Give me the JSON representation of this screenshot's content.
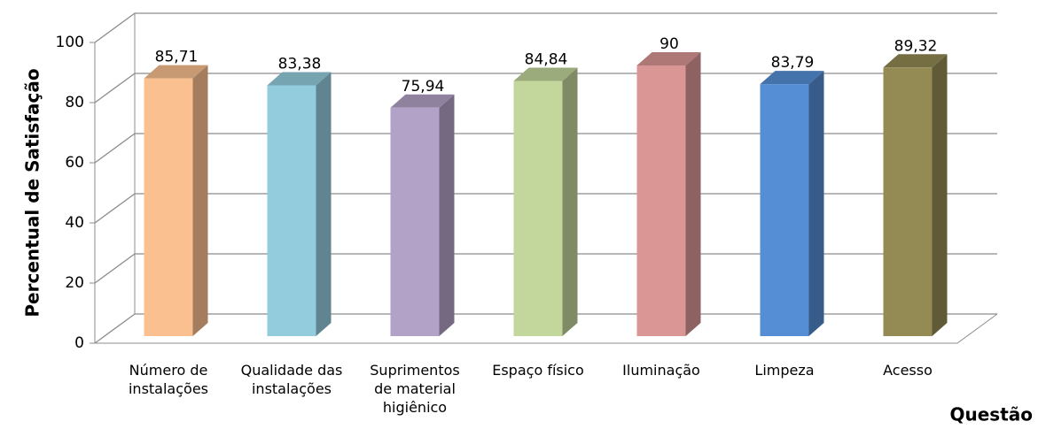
{
  "chart_data": {
    "type": "bar3d",
    "y_label": "Percentual de Satisfação",
    "x_label": "Questão",
    "categories": [
      "Número de instalações",
      "Qualidade das instalações",
      "Suprimentos de material higiênico",
      "Espaço físico",
      "Iluminação",
      "Limpeza",
      "Acesso"
    ],
    "values": [
      85.71,
      83.38,
      75.94,
      84.84,
      90,
      83.79,
      89.32
    ],
    "value_labels": [
      "85,71",
      "83,38",
      "75,94",
      "84,84",
      "90",
      "83,79",
      "89,32"
    ],
    "colors": [
      "#fac090",
      "#93cddd",
      "#b3a2c7",
      "#c3d69b",
      "#d99694",
      "#558ed5",
      "#948a54"
    ],
    "ylim": [
      0,
      100
    ],
    "yticks": [
      0,
      20,
      40,
      60,
      80,
      100
    ],
    "grid": true
  }
}
